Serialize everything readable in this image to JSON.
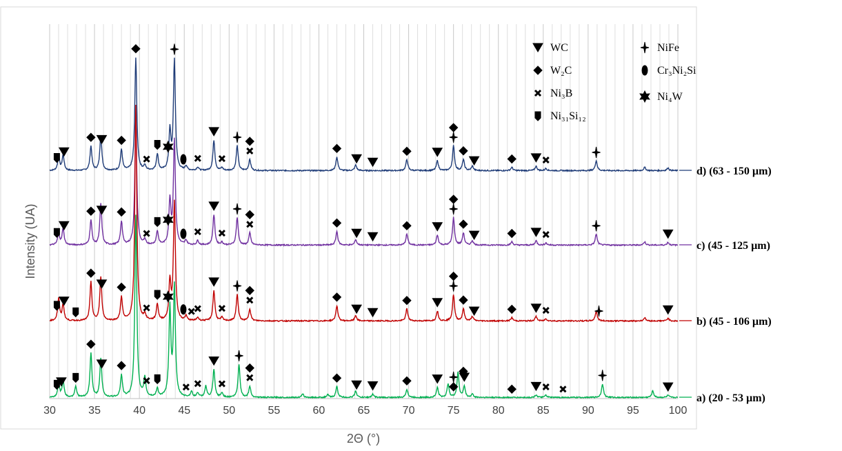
{
  "chart_data": {
    "type": "line",
    "xlabel": "2Θ (°)",
    "ylabel": "Intensity (UA)",
    "xlim": [
      30,
      100
    ],
    "x_ticks": [
      "30",
      "35",
      "40",
      "45",
      "50",
      "55",
      "60",
      "65",
      "70",
      "75",
      "80",
      "85",
      "90",
      "95",
      "100"
    ],
    "grid": "vertical lines every 1°",
    "series": [
      {
        "name": "d) (63 - 150 µm)",
        "color": "#1f3c78",
        "peaks": [
          [
            31.0,
            25
          ],
          [
            31.5,
            28
          ],
          [
            34.6,
            44
          ],
          [
            35.7,
            64
          ],
          [
            38.0,
            38
          ],
          [
            39.6,
            205
          ],
          [
            40.6,
            8
          ],
          [
            42.0,
            30
          ],
          [
            43.4,
            70
          ],
          [
            43.9,
            200
          ],
          [
            45.2,
            8
          ],
          [
            46.5,
            6
          ],
          [
            48.3,
            55
          ],
          [
            49.2,
            5
          ],
          [
            50.9,
            45
          ],
          [
            52.3,
            20
          ],
          [
            62.0,
            25
          ],
          [
            64.1,
            10
          ],
          [
            69.8,
            20
          ],
          [
            73.2,
            18
          ],
          [
            75.0,
            45
          ],
          [
            76.1,
            20
          ],
          [
            77.1,
            8
          ],
          [
            81.5,
            6
          ],
          [
            84.2,
            8
          ],
          [
            85.3,
            4
          ],
          [
            90.9,
            18
          ],
          [
            96.3,
            6
          ],
          [
            98.9,
            5
          ]
        ]
      },
      {
        "name": "c) (45 - 125 µm)",
        "color": "#7030a0",
        "peaks": [
          [
            31.0,
            22
          ],
          [
            31.5,
            30
          ],
          [
            34.6,
            45
          ],
          [
            35.7,
            75
          ],
          [
            38.0,
            43
          ],
          [
            39.6,
            230
          ],
          [
            40.6,
            8
          ],
          [
            42.0,
            25
          ],
          [
            43.4,
            80
          ],
          [
            43.9,
            190
          ],
          [
            45.2,
            8
          ],
          [
            46.5,
            8
          ],
          [
            48.3,
            55
          ],
          [
            49.2,
            5
          ],
          [
            50.9,
            50
          ],
          [
            52.3,
            22
          ],
          [
            62.0,
            25
          ],
          [
            64.1,
            10
          ],
          [
            69.8,
            20
          ],
          [
            73.2,
            18
          ],
          [
            75.0,
            50
          ],
          [
            76.1,
            22
          ],
          [
            77.1,
            8
          ],
          [
            81.5,
            6
          ],
          [
            84.2,
            8
          ],
          [
            85.3,
            4
          ],
          [
            90.9,
            20
          ],
          [
            96.3,
            6
          ],
          [
            98.9,
            5
          ]
        ]
      },
      {
        "name": "b) (45 - 106 µm)",
        "color": "#c00000",
        "peaks": [
          [
            31.0,
            40
          ],
          [
            31.5,
            30
          ],
          [
            34.6,
            70
          ],
          [
            35.7,
            80
          ],
          [
            38.0,
            43
          ],
          [
            39.6,
            390
          ],
          [
            40.6,
            10
          ],
          [
            42.0,
            30
          ],
          [
            43.4,
            70
          ],
          [
            43.9,
            215
          ],
          [
            45.2,
            8
          ],
          [
            46.5,
            6
          ],
          [
            48.3,
            55
          ],
          [
            49.2,
            6
          ],
          [
            50.9,
            48
          ],
          [
            52.3,
            22
          ],
          [
            62.0,
            28
          ],
          [
            64.1,
            10
          ],
          [
            69.8,
            22
          ],
          [
            73.2,
            18
          ],
          [
            75.0,
            48
          ],
          [
            76.1,
            22
          ],
          [
            77.1,
            8
          ],
          [
            81.5,
            6
          ],
          [
            84.2,
            8
          ],
          [
            85.3,
            4
          ],
          [
            90.9,
            18
          ],
          [
            96.3,
            6
          ],
          [
            98.9,
            5
          ]
        ]
      },
      {
        "name": "a) (20 - 53 µm)",
        "color": "#00b050",
        "peaks": [
          [
            31.0,
            25
          ],
          [
            31.5,
            30
          ],
          [
            32.9,
            20
          ],
          [
            34.6,
            80
          ],
          [
            35.7,
            70
          ],
          [
            38.0,
            40
          ],
          [
            39.6,
            330
          ],
          [
            40.6,
            35
          ],
          [
            42.0,
            15
          ],
          [
            43.4,
            160
          ],
          [
            43.9,
            200
          ],
          [
            45.8,
            10
          ],
          [
            46.5,
            8
          ],
          [
            47.4,
            20
          ],
          [
            48.3,
            50
          ],
          [
            49.2,
            8
          ],
          [
            51.1,
            60
          ],
          [
            52.3,
            20
          ],
          [
            58.2,
            6
          ],
          [
            61.0,
            5
          ],
          [
            62.0,
            20
          ],
          [
            64.1,
            12
          ],
          [
            66.0,
            6
          ],
          [
            69.8,
            15
          ],
          [
            73.2,
            18
          ],
          [
            74.4,
            25
          ],
          [
            75.5,
            45
          ],
          [
            76.2,
            20
          ],
          [
            77.1,
            6
          ],
          [
            84.2,
            5
          ],
          [
            85.3,
            4
          ],
          [
            91.6,
            25
          ],
          [
            97.2,
            12
          ],
          [
            98.9,
            4
          ]
        ]
      }
    ],
    "legend": [
      {
        "symbol": "wc",
        "label": "WC"
      },
      {
        "symbol": "w2c",
        "label": "W₂C"
      },
      {
        "symbol": "ni3b",
        "label": "Ni₃B"
      },
      {
        "symbol": "ni31si12",
        "label": "Ni₃₁Si₁₂"
      },
      {
        "symbol": "nife",
        "label": "NiFe"
      },
      {
        "symbol": "cr3ni2si",
        "label": "Cr₃Ni₂Si"
      },
      {
        "symbol": "ni4w",
        "label": "Ni₄W"
      }
    ],
    "phase_markers": {
      "d": [
        [
          "ni31si12",
          30.8
        ],
        [
          "wc",
          31.6
        ],
        [
          "w2c",
          34.6
        ],
        [
          "wc",
          35.8
        ],
        [
          "w2c",
          38.0
        ],
        [
          "w2c",
          39.6
        ],
        [
          "ni3b",
          40.8
        ],
        [
          "ni31si12",
          42.0
        ],
        [
          "ni4w",
          43.2
        ],
        [
          "nife",
          43.9
        ],
        [
          "cr3ni2si",
          44.9
        ],
        [
          "ni3b",
          46.5
        ],
        [
          "wc",
          48.3
        ],
        [
          "ni3b",
          49.2
        ],
        [
          "nife",
          50.9
        ],
        [
          "ni3b",
          52.3
        ],
        [
          "w2c",
          52.3
        ],
        [
          "w2c",
          62.0
        ],
        [
          "wc",
          64.2
        ],
        [
          "wc",
          66.0
        ],
        [
          "w2c",
          69.8
        ],
        [
          "wc",
          73.2
        ],
        [
          "nife",
          75.0
        ],
        [
          "w2c",
          75.0
        ],
        [
          "w2c",
          76.1
        ],
        [
          "wc",
          77.3
        ],
        [
          "w2c",
          81.5
        ],
        [
          "wc",
          84.2
        ],
        [
          "ni3b",
          85.3
        ],
        [
          "nife",
          90.9
        ]
      ],
      "c": [
        [
          "ni31si12",
          30.8
        ],
        [
          "wc",
          31.6
        ],
        [
          "w2c",
          34.6
        ],
        [
          "wc",
          35.8
        ],
        [
          "w2c",
          38.0
        ],
        [
          "ni3b",
          40.8
        ],
        [
          "ni31si12",
          42.0
        ],
        [
          "ni4w",
          43.2
        ],
        [
          "cr3ni2si",
          44.9
        ],
        [
          "ni3b",
          46.5
        ],
        [
          "wc",
          48.3
        ],
        [
          "ni3b",
          49.2
        ],
        [
          "nife",
          50.9
        ],
        [
          "ni3b",
          52.3
        ],
        [
          "w2c",
          52.3
        ],
        [
          "w2c",
          62.0
        ],
        [
          "wc",
          64.2
        ],
        [
          "wc",
          66.0
        ],
        [
          "w2c",
          69.8
        ],
        [
          "wc",
          73.2
        ],
        [
          "nife",
          75.0
        ],
        [
          "w2c",
          75.0
        ],
        [
          "w2c",
          76.1
        ],
        [
          "wc",
          77.3
        ],
        [
          "w2c",
          81.5
        ],
        [
          "wc",
          84.2
        ],
        [
          "ni3b",
          85.3
        ],
        [
          "nife",
          90.9
        ],
        [
          "wc",
          98.9
        ]
      ],
      "b": [
        [
          "ni31si12",
          30.8
        ],
        [
          "wc",
          31.6
        ],
        [
          "ni31si12",
          32.9
        ],
        [
          "w2c",
          34.6
        ],
        [
          "wc",
          35.8
        ],
        [
          "w2c",
          38.0
        ],
        [
          "ni3b",
          40.8
        ],
        [
          "ni31si12",
          42.0
        ],
        [
          "ni4w",
          43.2
        ],
        [
          "cr3ni2si",
          44.9
        ],
        [
          "ni3b",
          45.8
        ],
        [
          "ni3b",
          46.5
        ],
        [
          "wc",
          48.3
        ],
        [
          "ni3b",
          49.2
        ],
        [
          "nife",
          50.9
        ],
        [
          "ni3b",
          52.3
        ],
        [
          "w2c",
          52.3
        ],
        [
          "w2c",
          62.0
        ],
        [
          "wc",
          64.2
        ],
        [
          "wc",
          66.0
        ],
        [
          "w2c",
          69.8
        ],
        [
          "wc",
          73.2
        ],
        [
          "nife",
          75.0
        ],
        [
          "w2c",
          75.0
        ],
        [
          "w2c",
          76.1
        ],
        [
          "wc",
          77.3
        ],
        [
          "w2c",
          81.5
        ],
        [
          "wc",
          84.2
        ],
        [
          "ni3b",
          85.3
        ],
        [
          "nife",
          91.2
        ],
        [
          "wc",
          98.9
        ]
      ],
      "a": [
        [
          "ni31si12",
          30.8
        ],
        [
          "wc",
          31.3
        ],
        [
          "ni31si12",
          32.9
        ],
        [
          "w2c",
          34.6
        ],
        [
          "wc",
          35.8
        ],
        [
          "w2c",
          38.0
        ],
        [
          "ni3b",
          40.8
        ],
        [
          "ni31si12",
          42.0
        ],
        [
          "ni3b",
          45.2
        ],
        [
          "ni3b",
          46.5
        ],
        [
          "wc",
          48.3
        ],
        [
          "ni3b",
          49.2
        ],
        [
          "nife",
          51.1
        ],
        [
          "ni3b",
          52.3
        ],
        [
          "w2c",
          52.3
        ],
        [
          "w2c",
          62.0
        ],
        [
          "wc",
          64.2
        ],
        [
          "wc",
          66.0
        ],
        [
          "w2c",
          69.8
        ],
        [
          "wc",
          73.2
        ],
        [
          "w2c",
          75.0
        ],
        [
          "nife",
          75.0
        ],
        [
          "wc",
          76.2
        ],
        [
          "w2c",
          76.1
        ],
        [
          "w2c",
          81.5
        ],
        [
          "wc",
          84.2
        ],
        [
          "ni3b",
          85.3
        ],
        [
          "ni3b",
          87.2
        ],
        [
          "nife",
          91.6
        ],
        [
          "wc",
          98.9
        ]
      ]
    }
  }
}
